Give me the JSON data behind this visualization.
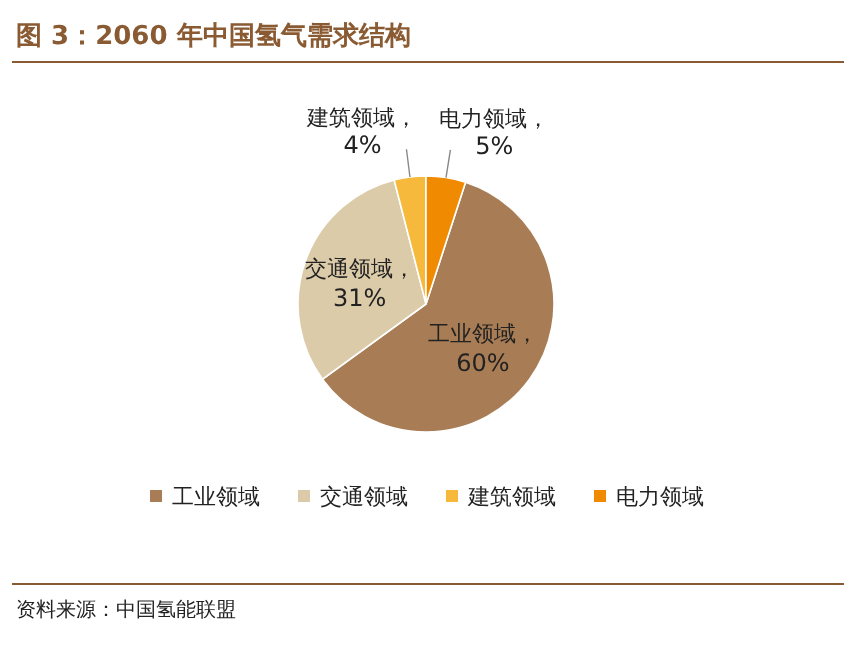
{
  "chart_data": {
    "type": "pie",
    "title": "图 3：2060 年中国氢气需求结构",
    "categories": [
      "工业领域",
      "交通领域",
      "建筑领域",
      "电力领域"
    ],
    "values": [
      60,
      31,
      4,
      5
    ],
    "value_labels": [
      "工业领域，60%",
      "交通领域，31%",
      "建筑领域，4%",
      "电力领域，5%"
    ],
    "colors": [
      "#a87d55",
      "#dccba9",
      "#f6b93b",
      "#f08a00"
    ],
    "legend": "bottom",
    "annotations": [
      "资料来源：中国氢能联盟"
    ]
  }
}
